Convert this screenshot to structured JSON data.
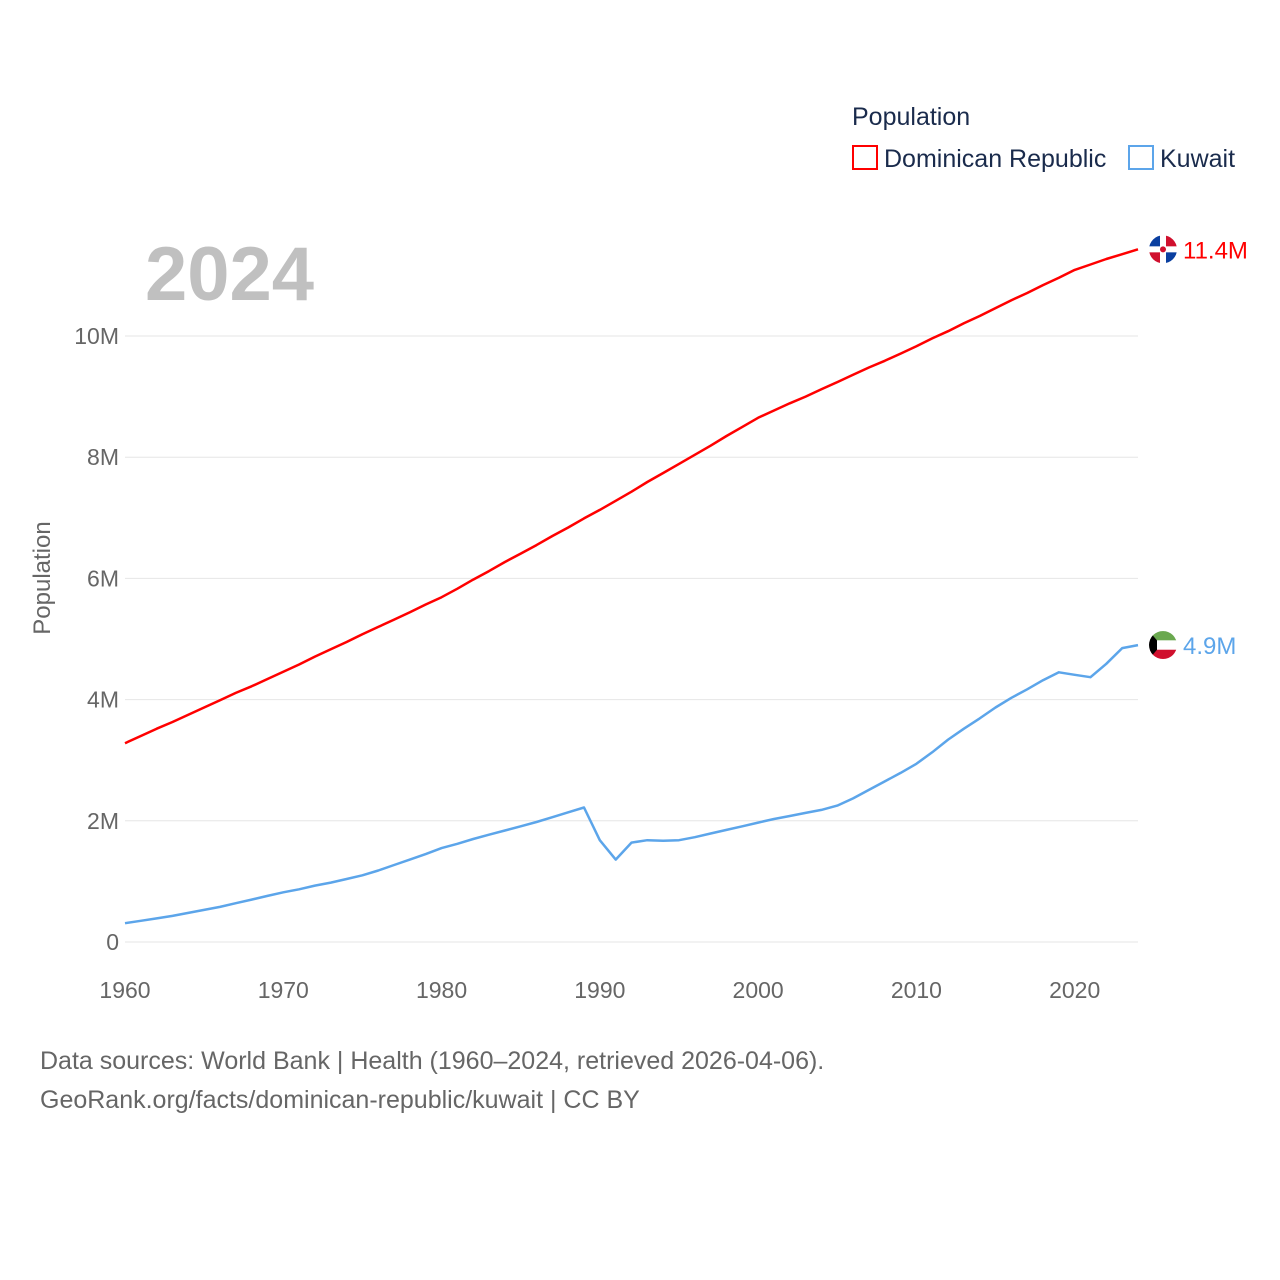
{
  "chart_data": {
    "type": "line",
    "title": "Population",
    "year_label": "2024",
    "ylabel": "Population",
    "xlabel": "",
    "xlim": [
      1960,
      2024
    ],
    "ylim": [
      0,
      11.43
    ],
    "y_unit": "millions",
    "grid": true,
    "legend_position": "top-right",
    "x_ticks": [
      1960,
      1970,
      1980,
      1990,
      2000,
      2010,
      2020
    ],
    "x_tick_labels": [
      "1960",
      "1970",
      "1980",
      "1990",
      "2000",
      "2010",
      "2020"
    ],
    "y_ticks": [
      0,
      2,
      4,
      6,
      8,
      10
    ],
    "y_tick_labels": [
      "0",
      "2M",
      "4M",
      "6M",
      "8M",
      "10M"
    ],
    "x_start": 1960,
    "series": [
      {
        "name": "Dominican Republic",
        "color": "#ff0000",
        "end_label": "11.4M",
        "flag": "dominican-republic-flag",
        "values": [
          3.28,
          3.4,
          3.52,
          3.63,
          3.75,
          3.87,
          3.99,
          4.11,
          4.22,
          4.34,
          4.46,
          4.58,
          4.71,
          4.83,
          4.95,
          5.08,
          5.2,
          5.32,
          5.44,
          5.57,
          5.69,
          5.83,
          5.98,
          6.12,
          6.27,
          6.41,
          6.55,
          6.7,
          6.84,
          6.99,
          7.13,
          7.28,
          7.43,
          7.59,
          7.74,
          7.89,
          8.04,
          8.19,
          8.35,
          8.5,
          8.65,
          8.77,
          8.89,
          9.0,
          9.12,
          9.24,
          9.36,
          9.48,
          9.59,
          9.71,
          9.83,
          9.96,
          10.08,
          10.21,
          10.33,
          10.46,
          10.59,
          10.71,
          10.84,
          10.96,
          11.09,
          11.18,
          11.27,
          11.35,
          11.43
        ]
      },
      {
        "name": "Kuwait",
        "color": "#5ca5ea",
        "end_label": "4.9M",
        "flag": "kuwait-flag",
        "values": [
          0.31,
          0.35,
          0.39,
          0.43,
          0.48,
          0.53,
          0.58,
          0.64,
          0.7,
          0.76,
          0.82,
          0.87,
          0.93,
          0.98,
          1.04,
          1.1,
          1.18,
          1.27,
          1.36,
          1.45,
          1.55,
          1.62,
          1.7,
          1.77,
          1.84,
          1.91,
          1.98,
          2.06,
          2.14,
          2.22,
          1.68,
          1.36,
          1.64,
          1.68,
          1.67,
          1.68,
          1.73,
          1.79,
          1.85,
          1.91,
          1.97,
          2.03,
          2.08,
          2.13,
          2.18,
          2.25,
          2.37,
          2.51,
          2.65,
          2.79,
          2.94,
          3.13,
          3.34,
          3.52,
          3.69,
          3.87,
          4.03,
          4.17,
          4.32,
          4.45,
          4.41,
          4.37,
          4.59,
          4.85,
          4.9
        ]
      }
    ]
  },
  "footer": {
    "line1": "Data sources: World Bank | Health (1960–2024, retrieved 2026-04-06).",
    "line2": "GeoRank.org/facts/dominican-republic/kuwait | CC BY"
  }
}
